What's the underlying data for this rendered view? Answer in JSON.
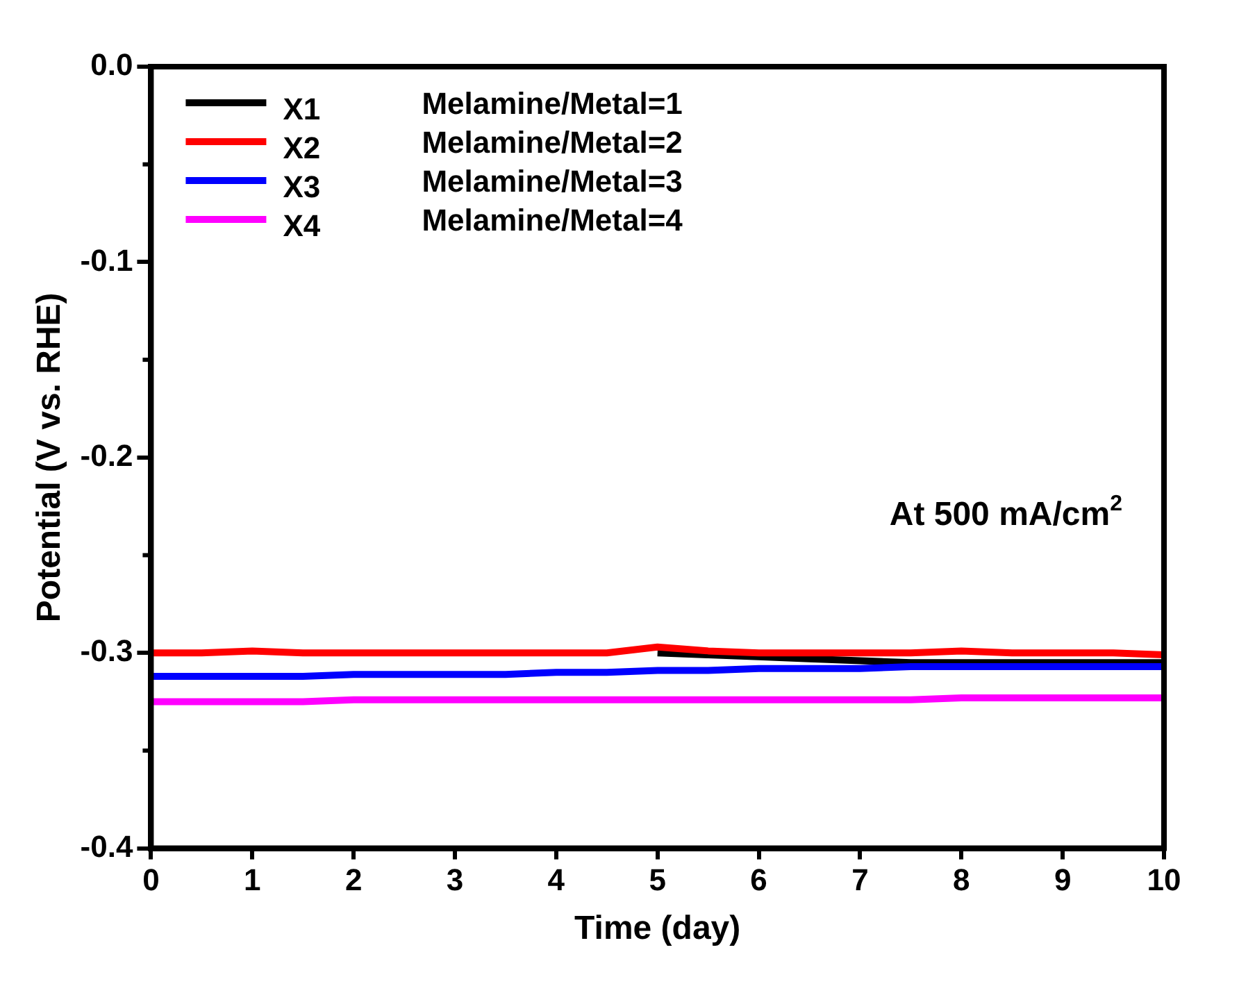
{
  "chart_data": {
    "type": "line",
    "xlabel": "Time (day)",
    "ylabel": "Potential (V vs. RHE)",
    "xlim": [
      0,
      10
    ],
    "ylim": [
      -0.4,
      0
    ],
    "xticks": [
      0,
      1,
      2,
      3,
      4,
      5,
      6,
      7,
      8,
      9,
      10
    ],
    "yticks": [
      {
        "value": -0.4,
        "label": "-0.4"
      },
      {
        "value": -0.3,
        "label": "-0.3"
      },
      {
        "value": -0.2,
        "label": "-0.2"
      },
      {
        "value": -0.1,
        "label": "-0.1"
      },
      {
        "value": 0,
        "label": "0.0"
      }
    ],
    "grid": false,
    "legend": "top left",
    "marker": "none",
    "line_style": "solid",
    "x": [
      0,
      0.5,
      1,
      1.5,
      2,
      2.5,
      3,
      3.5,
      4,
      4.5,
      5,
      5.5,
      6,
      6.5,
      7,
      7.5,
      8,
      8.5,
      9,
      9.5,
      10
    ],
    "annotations": [
      "Melamine/Metal=1",
      "Melamine/Metal=2",
      "Melamine/Metal=3",
      "Melamine/Metal=4",
      "At 500 mA/cm$^{2}$"
    ],
    "series": [
      {
        "name": "X1",
        "color": "#000000",
        "values": [
          null,
          null,
          null,
          null,
          null,
          null,
          null,
          null,
          null,
          null,
          -0.3,
          -0.301,
          -0.302,
          -0.303,
          -0.304,
          -0.305,
          -0.305,
          -0.305,
          -0.305,
          -0.305,
          -0.305
        ]
      },
      {
        "name": "X2",
        "color": "#ff0000",
        "values": [
          -0.3,
          -0.3,
          -0.299,
          -0.3,
          -0.3,
          -0.3,
          -0.3,
          -0.3,
          -0.3,
          -0.3,
          -0.297,
          -0.299,
          -0.3,
          -0.3,
          -0.3,
          -0.3,
          -0.299,
          -0.3,
          -0.3,
          -0.3,
          -0.301
        ]
      },
      {
        "name": "X3",
        "color": "#0000ff",
        "values": [
          -0.312,
          -0.312,
          -0.312,
          -0.312,
          -0.311,
          -0.311,
          -0.311,
          -0.311,
          -0.31,
          -0.31,
          -0.309,
          -0.309,
          -0.308,
          -0.308,
          -0.308,
          -0.307,
          -0.307,
          -0.307,
          -0.307,
          -0.307,
          -0.307
        ]
      },
      {
        "name": "X4",
        "color": "#ff00ff",
        "values": [
          -0.325,
          -0.325,
          -0.325,
          -0.325,
          -0.324,
          -0.324,
          -0.324,
          -0.324,
          -0.324,
          -0.324,
          -0.324,
          -0.324,
          -0.324,
          -0.324,
          -0.324,
          -0.324,
          -0.323,
          -0.323,
          -0.323,
          -0.323,
          -0.323
        ]
      }
    ]
  }
}
